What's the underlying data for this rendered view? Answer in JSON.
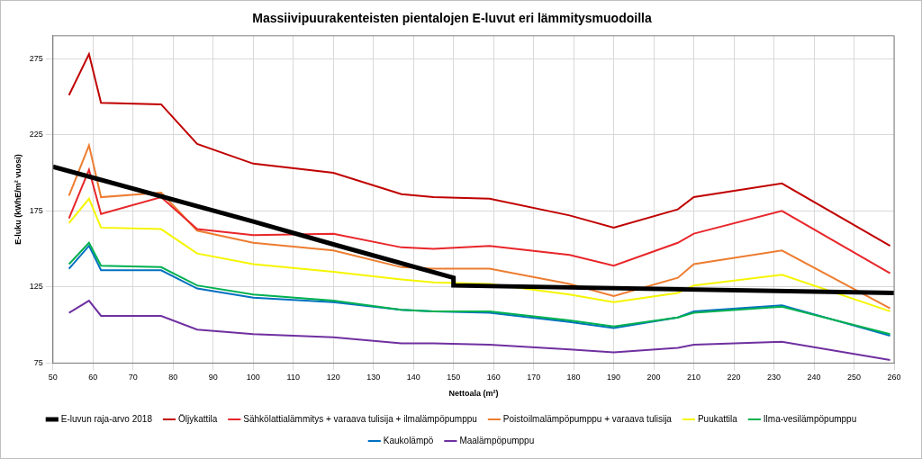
{
  "chart_data": {
    "type": "line",
    "title": "Massiivipuurakenteisten pientalojen E-luvut eri lämmitysmuodoilla",
    "x_label": "Nettoala (m²)",
    "y_label": "E-luku (kWhE/m² vuosi)",
    "xlim": [
      50,
      260
    ],
    "xticks": [
      50,
      60,
      70,
      80,
      90,
      100,
      110,
      120,
      130,
      140,
      150,
      160,
      170,
      180,
      190,
      200,
      210,
      220,
      230,
      240,
      250,
      260
    ],
    "ylim": [
      75,
      290
    ],
    "yticks": [
      75,
      125,
      175,
      225,
      275
    ],
    "grid": true,
    "legend": "bottom",
    "series": [
      {
        "name": "E-luvun raja-arvo 2018",
        "color": "#000000",
        "x": [
          50,
          100,
          120,
          150,
          150,
          260
        ],
        "values": [
          204,
          168,
          153,
          131,
          126,
          121
        ]
      },
      {
        "name": "Öljykattila",
        "color": "#c00000",
        "x": [
          54,
          59,
          62,
          77,
          86,
          100,
          120,
          137,
          145,
          159,
          179,
          190,
          206,
          210,
          232,
          259
        ],
        "values": [
          251,
          278,
          246,
          245,
          219,
          206,
          200,
          186,
          184,
          183,
          172,
          164,
          176,
          184,
          193,
          152
        ]
      },
      {
        "name": "Sähkölattialämmitys + varaava tulisija + ilmalämpöpumppu",
        "color": "#e8262a",
        "x": [
          54,
          59,
          62,
          77,
          86,
          100,
          120,
          137,
          145,
          159,
          179,
          190,
          206,
          210,
          232,
          259
        ],
        "values": [
          170,
          202,
          173,
          184,
          163,
          159,
          160,
          151,
          150,
          152,
          146,
          139,
          154,
          160,
          175,
          134
        ]
      },
      {
        "name": "Poistoilmalämpöpumppu + varaava tulisija",
        "color": "#ed7d31",
        "x": [
          54,
          59,
          62,
          77,
          86,
          100,
          120,
          137,
          145,
          159,
          179,
          190,
          206,
          210,
          232,
          259
        ],
        "values": [
          185,
          218,
          184,
          187,
          162,
          154,
          149,
          138,
          137,
          137,
          127,
          119,
          131,
          140,
          149,
          111
        ]
      },
      {
        "name": "Puukattila",
        "color": "#f5f500",
        "x": [
          54,
          59,
          62,
          77,
          86,
          100,
          120,
          137,
          145,
          159,
          179,
          190,
          206,
          210,
          232,
          259
        ],
        "values": [
          167,
          183,
          164,
          163,
          147,
          140,
          135,
          130,
          128,
          127,
          120,
          115,
          121,
          126,
          133,
          109
        ]
      },
      {
        "name": "Ilma-vesilämpöpumppu",
        "color": "#00b050",
        "x": [
          54,
          59,
          62,
          77,
          86,
          100,
          120,
          137,
          145,
          159,
          179,
          190,
          206,
          210,
          232,
          259
        ],
        "values": [
          140,
          154,
          139,
          138,
          126,
          120,
          116,
          110,
          109,
          109,
          103,
          99,
          105,
          108,
          112,
          94
        ]
      },
      {
        "name": "Kaukolämpö",
        "color": "#0070c0",
        "x": [
          54,
          59,
          62,
          77,
          86,
          100,
          120,
          137,
          145,
          159,
          179,
          190,
          206,
          210,
          232,
          259
        ],
        "values": [
          137,
          152,
          136,
          136,
          124,
          118,
          115,
          110,
          109,
          108,
          102,
          98,
          105,
          109,
          113,
          93
        ]
      },
      {
        "name": "Maalämpöpumppu",
        "color": "#7030a0",
        "x": [
          54,
          59,
          62,
          77,
          86,
          100,
          120,
          137,
          145,
          159,
          179,
          190,
          206,
          210,
          232,
          259
        ],
        "values": [
          108,
          116,
          106,
          106,
          97,
          94,
          92,
          88,
          88,
          87,
          84,
          82,
          85,
          87,
          89,
          77
        ]
      }
    ]
  }
}
